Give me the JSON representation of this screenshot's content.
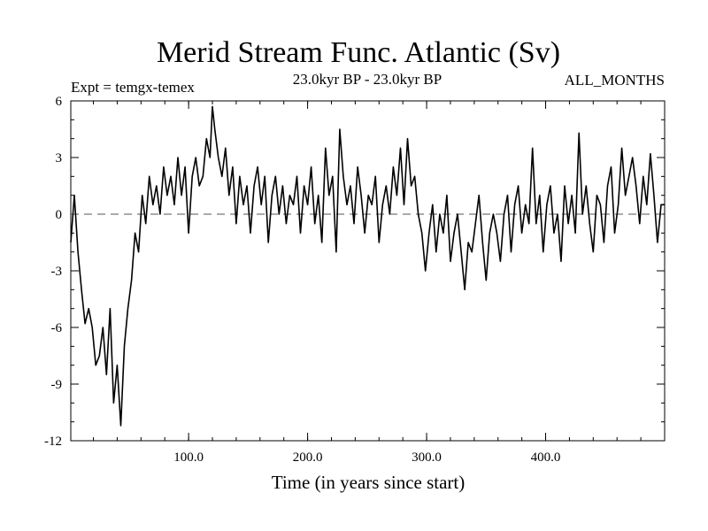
{
  "chart_data": {
    "type": "line",
    "title": "Merid Stream Func. Atlantic (Sv)",
    "subtitle": "23.0kyr BP - 23.0kyr BP",
    "left_note": "Expt = temgx-temex",
    "right_note": "ALL_MONTHS",
    "xlabel": "Time (in years since start)",
    "ylabel": "",
    "xlim": [
      1,
      500
    ],
    "ylim": [
      -12,
      6
    ],
    "x_ticks": [
      100,
      200,
      300,
      400
    ],
    "x_tick_labels": [
      "100.0",
      "200.0",
      "300.0",
      "400.0"
    ],
    "y_ticks": [
      6,
      3,
      0,
      -3,
      -6,
      -9,
      -12
    ],
    "y_tick_labels": [
      "6",
      "3",
      "0",
      "-3",
      "-6",
      "-9",
      "-12"
    ],
    "zero_line": true,
    "grid": false,
    "series": [
      {
        "name": "temgx-temex",
        "color": "#000000",
        "x": [
          1,
          4,
          7,
          10,
          13,
          16,
          19,
          22,
          25,
          28,
          31,
          34,
          37,
          40,
          43,
          46,
          49,
          52,
          55,
          58,
          61,
          64,
          67,
          70,
          73,
          76,
          79,
          82,
          85,
          88,
          91,
          94,
          97,
          100,
          103,
          106,
          109,
          112,
          115,
          118,
          120,
          122,
          125,
          128,
          131,
          134,
          137,
          140,
          143,
          146,
          149,
          152,
          155,
          158,
          161,
          164,
          167,
          170,
          173,
          176,
          179,
          182,
          185,
          188,
          191,
          194,
          197,
          200,
          203,
          206,
          209,
          212,
          215,
          218,
          221,
          224,
          227,
          230,
          233,
          236,
          239,
          242,
          245,
          248,
          251,
          254,
          257,
          260,
          263,
          266,
          269,
          272,
          275,
          278,
          281,
          284,
          287,
          290,
          293,
          296,
          299,
          302,
          305,
          308,
          311,
          314,
          317,
          320,
          323,
          326,
          329,
          332,
          335,
          338,
          341,
          344,
          347,
          350,
          353,
          356,
          359,
          362,
          365,
          368,
          371,
          374,
          377,
          380,
          383,
          386,
          389,
          392,
          395,
          398,
          401,
          404,
          407,
          410,
          413,
          416,
          419,
          422,
          425,
          428,
          431,
          434,
          437,
          440,
          443,
          446,
          449,
          452,
          455,
          458,
          461,
          464,
          467,
          470,
          473,
          476,
          479,
          482,
          485,
          488,
          491,
          494,
          497,
          500
        ],
        "values": [
          -1.5,
          1.0,
          -2.0,
          -4.0,
          -5.8,
          -5.0,
          -6.0,
          -8.0,
          -7.5,
          -6.0,
          -8.5,
          -5.0,
          -10.0,
          -8.0,
          -11.2,
          -7.0,
          -5.0,
          -3.5,
          -1.0,
          -2.0,
          1.0,
          -0.5,
          2.0,
          0.5,
          1.5,
          0.0,
          2.5,
          1.0,
          2.0,
          0.5,
          3.0,
          1.0,
          2.5,
          -1.0,
          2.0,
          3.0,
          1.5,
          2.0,
          4.0,
          3.0,
          5.7,
          4.5,
          3.0,
          2.0,
          3.5,
          1.0,
          2.5,
          -0.5,
          2.0,
          0.5,
          1.5,
          -1.0,
          1.5,
          2.5,
          0.5,
          2.0,
          -1.5,
          1.0,
          2.0,
          0.0,
          1.5,
          -0.5,
          1.0,
          0.5,
          2.0,
          -1.0,
          1.5,
          0.5,
          2.5,
          -0.5,
          1.0,
          -1.5,
          3.5,
          1.0,
          2.0,
          -2.0,
          4.5,
          2.0,
          0.5,
          1.5,
          -0.5,
          2.5,
          1.0,
          -1.0,
          1.0,
          0.5,
          2.0,
          -1.5,
          0.5,
          1.5,
          0.0,
          2.5,
          1.0,
          3.5,
          0.5,
          4.0,
          1.5,
          2.0,
          0.0,
          -1.0,
          -3.0,
          -1.0,
          0.5,
          -2.0,
          0.0,
          -1.0,
          1.0,
          -2.5,
          -1.0,
          0.0,
          -2.0,
          -4.0,
          -1.5,
          -2.0,
          -0.5,
          1.0,
          -1.5,
          -3.5,
          -1.0,
          0.0,
          -1.0,
          -2.5,
          0.0,
          1.0,
          -2.0,
          0.5,
          1.5,
          -1.0,
          0.5,
          -0.5,
          3.5,
          -0.5,
          1.0,
          -2.0,
          0.5,
          1.5,
          -1.0,
          0.0,
          -2.5,
          1.5,
          -0.5,
          1.0,
          -1.0,
          4.3,
          0.0,
          1.5,
          -0.5,
          -2.0,
          1.0,
          0.5,
          -1.5,
          1.5,
          2.5,
          -1.0,
          0.5,
          3.5,
          1.0,
          2.0,
          3.0,
          1.5,
          -0.5,
          2.0,
          0.5,
          3.2,
          1.0,
          -1.5,
          0.5,
          0.5
        ]
      }
    ]
  }
}
